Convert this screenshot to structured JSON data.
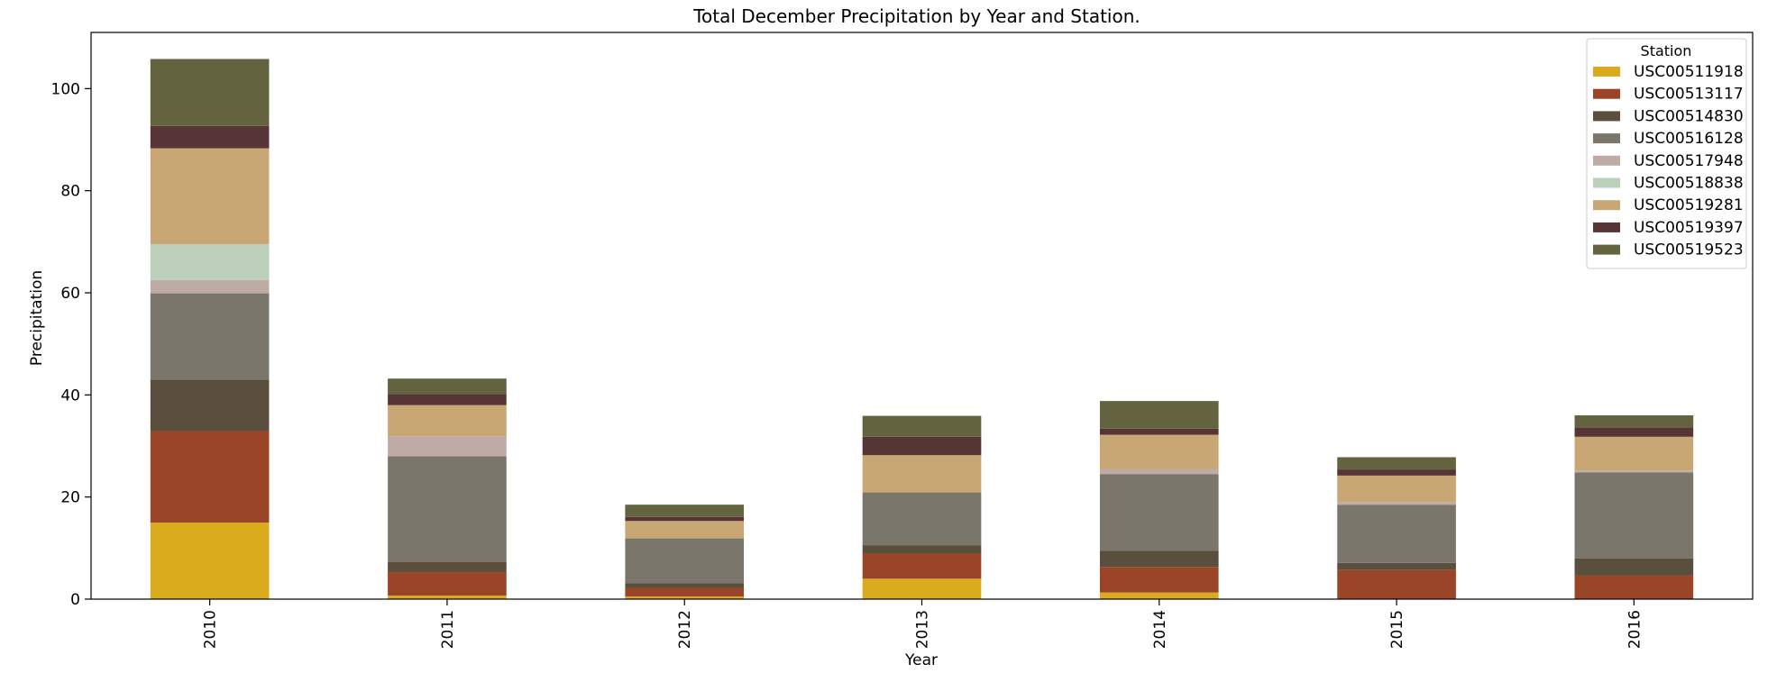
{
  "chart_data": {
    "type": "bar",
    "stacked": true,
    "title": "Total December Precipitation by Year and Station.",
    "xlabel": "Year",
    "ylabel": "Precipitation",
    "ylim": [
      0,
      111
    ],
    "yticks": [
      0,
      20,
      40,
      60,
      80,
      100
    ],
    "categories": [
      "2010",
      "2011",
      "2012",
      "2013",
      "2014",
      "2015",
      "2016"
    ],
    "legend": {
      "title": "Station",
      "placement": "top-right"
    },
    "grid": false,
    "series": [
      {
        "name": "USC00511918",
        "color": "#daac1d",
        "values": [
          15.0,
          0.7,
          0.5,
          4.0,
          1.3,
          0.0,
          0.0
        ]
      },
      {
        "name": "USC00513117",
        "color": "#9a4527",
        "values": [
          17.9,
          4.6,
          1.7,
          5.0,
          5.0,
          5.7,
          4.6
        ]
      },
      {
        "name": "USC00514830",
        "color": "#5a4e3c",
        "values": [
          10.1,
          2.0,
          0.9,
          1.5,
          3.2,
          1.4,
          3.4
        ]
      },
      {
        "name": "USC00516128",
        "color": "#7a766b",
        "values": [
          16.9,
          20.7,
          8.8,
          10.4,
          15.0,
          11.4,
          16.8
        ]
      },
      {
        "name": "USC00517948",
        "color": "#bfaba6",
        "values": [
          2.6,
          3.9,
          0.0,
          0.0,
          1.0,
          0.5,
          0.4
        ]
      },
      {
        "name": "USC00518838",
        "color": "#bbcfbb",
        "values": [
          7.0,
          0.0,
          0.0,
          0.0,
          0.0,
          0.0,
          0.0
        ]
      },
      {
        "name": "USC00519281",
        "color": "#c8a774",
        "values": [
          18.8,
          6.1,
          3.4,
          7.3,
          6.7,
          5.2,
          6.6
        ]
      },
      {
        "name": "USC00519397",
        "color": "#573537",
        "values": [
          4.4,
          2.2,
          0.8,
          3.6,
          1.2,
          1.2,
          1.8
        ]
      },
      {
        "name": "USC00519523",
        "color": "#63633f",
        "values": [
          13.1,
          3.0,
          2.4,
          4.1,
          5.4,
          2.4,
          2.4
        ]
      }
    ]
  }
}
